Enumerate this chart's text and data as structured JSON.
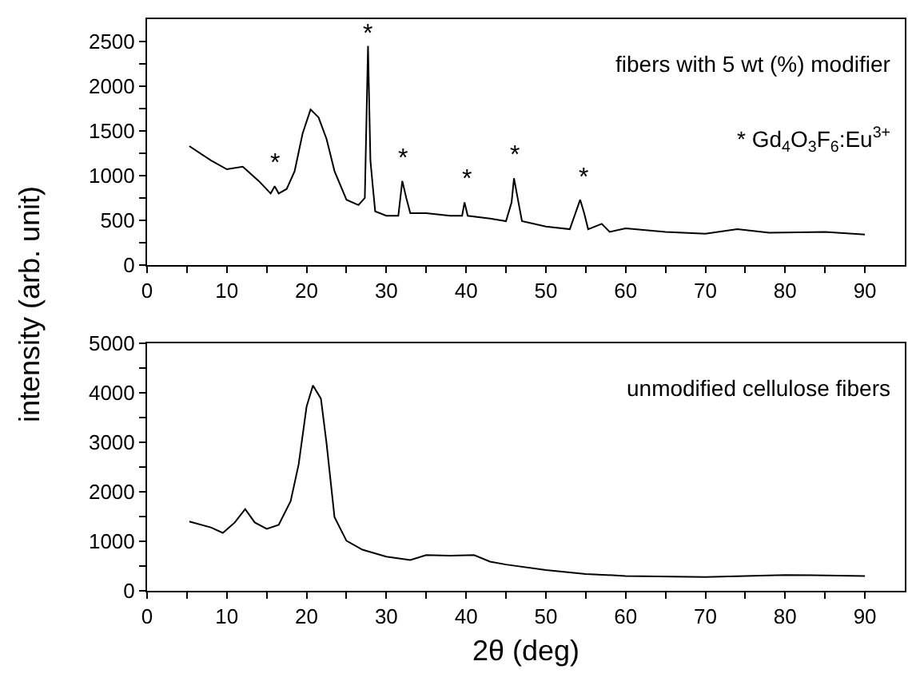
{
  "chart_data": [
    {
      "type": "line",
      "ylabel": "intensity (arb. unit)",
      "x": [
        5.3,
        8,
        10,
        12,
        14,
        15.5,
        16,
        16.5,
        17.5,
        18.5,
        19.5,
        20.5,
        21.5,
        22.5,
        23.5,
        25,
        26.5,
        27.3,
        27.7,
        28.0,
        28.3,
        28.6,
        30,
        31.5,
        32,
        32.5,
        33,
        35,
        38,
        39.5,
        39.8,
        40.2,
        43,
        45,
        45.7,
        46,
        46.5,
        47,
        50,
        53,
        54.3,
        54.8,
        55.3,
        57,
        58,
        60,
        65,
        70,
        74,
        78,
        85,
        90
      ],
      "series": [
        {
          "color": "#000000",
          "values": [
            1330,
            1170,
            1070,
            1100,
            940,
            800,
            880,
            800,
            850,
            1050,
            1470,
            1740,
            1650,
            1410,
            1050,
            730,
            670,
            750,
            2450,
            1170,
            880,
            600,
            550,
            550,
            940,
            750,
            580,
            580,
            550,
            550,
            700,
            550,
            520,
            490,
            700,
            970,
            730,
            490,
            430,
            400,
            730,
            580,
            400,
            460,
            370,
            410,
            370,
            350,
            400,
            360,
            370,
            340
          ]
        }
      ],
      "xlim": [
        0,
        95
      ],
      "xticks": [
        0,
        {
          "value": 5,
          "label": null
        },
        10,
        {
          "value": 15,
          "label": null
        },
        20,
        {
          "value": 25,
          "label": null
        },
        30,
        {
          "value": 35,
          "label": null
        },
        40,
        {
          "value": 45,
          "label": null
        },
        50,
        {
          "value": 55,
          "label": null
        },
        60,
        {
          "value": 65,
          "label": null
        },
        70,
        {
          "value": 75,
          "label": null
        },
        80,
        {
          "value": 85,
          "label": null
        },
        90
      ],
      "ylim": [
        0,
        2750
      ],
      "yticks": [
        0,
        {
          "value": 250,
          "label": null
        },
        500,
        {
          "value": 750,
          "label": null
        },
        1000,
        {
          "value": 1250,
          "label": null
        },
        1500,
        {
          "value": 1750,
          "label": null
        },
        2000,
        {
          "value": 2250,
          "label": null
        },
        2500
      ],
      "annotations": [
        "fibers with 5 wt (%) modifier",
        "* Gd$_{4}$O$_{3}$F$_{6}$:Eu$^{3+}$",
        {
          "text": "*",
          "x": 16,
          "y": 950
        },
        {
          "text": "*",
          "x": 27.7,
          "y": 2400
        },
        {
          "text": "*",
          "x": 32,
          "y": 1000
        },
        {
          "text": "*",
          "x": 40,
          "y": 760
        },
        {
          "text": "*",
          "x": 46,
          "y": 1030
        },
        {
          "text": "*",
          "x": 54.8,
          "y": 790
        }
      ]
    },
    {
      "type": "line",
      "xlabel": "2θ (deg)",
      "x": [
        5.3,
        8,
        9.5,
        11,
        12.3,
        13.5,
        15,
        16.5,
        18,
        19,
        20,
        20.8,
        21.8,
        22.5,
        23.5,
        25,
        27,
        30,
        33,
        35,
        38,
        41,
        43,
        45,
        50,
        55,
        60,
        70,
        80,
        90
      ],
      "series": [
        {
          "color": "#000000",
          "values": [
            1400,
            1280,
            1170,
            1380,
            1650,
            1380,
            1250,
            1330,
            1810,
            2550,
            3720,
            4150,
            3880,
            2980,
            1490,
            1010,
            830,
            690,
            620,
            720,
            710,
            720,
            590,
            530,
            420,
            340,
            300,
            280,
            320,
            300
          ]
        }
      ],
      "xlim": [
        0,
        95
      ],
      "xticks": [
        0,
        {
          "value": 5,
          "label": null
        },
        10,
        {
          "value": 15,
          "label": null
        },
        20,
        {
          "value": 25,
          "label": null
        },
        30,
        {
          "value": 35,
          "label": null
        },
        40,
        {
          "value": 45,
          "label": null
        },
        50,
        {
          "value": 55,
          "label": null
        },
        60,
        {
          "value": 65,
          "label": null
        },
        70,
        {
          "value": 75,
          "label": null
        },
        80,
        {
          "value": 85,
          "label": null
        },
        90
      ],
      "ylim": [
        0,
        5000
      ],
      "yticks": [
        0,
        {
          "value": 500,
          "label": null
        },
        1000,
        {
          "value": 1500,
          "label": null
        },
        2000,
        {
          "value": 2500,
          "label": null
        },
        3000,
        {
          "value": 3500,
          "label": null
        },
        4000,
        {
          "value": 4500,
          "label": null
        },
        5000
      ],
      "annotations": [
        "unmodified cellulose fibers"
      ]
    }
  ]
}
